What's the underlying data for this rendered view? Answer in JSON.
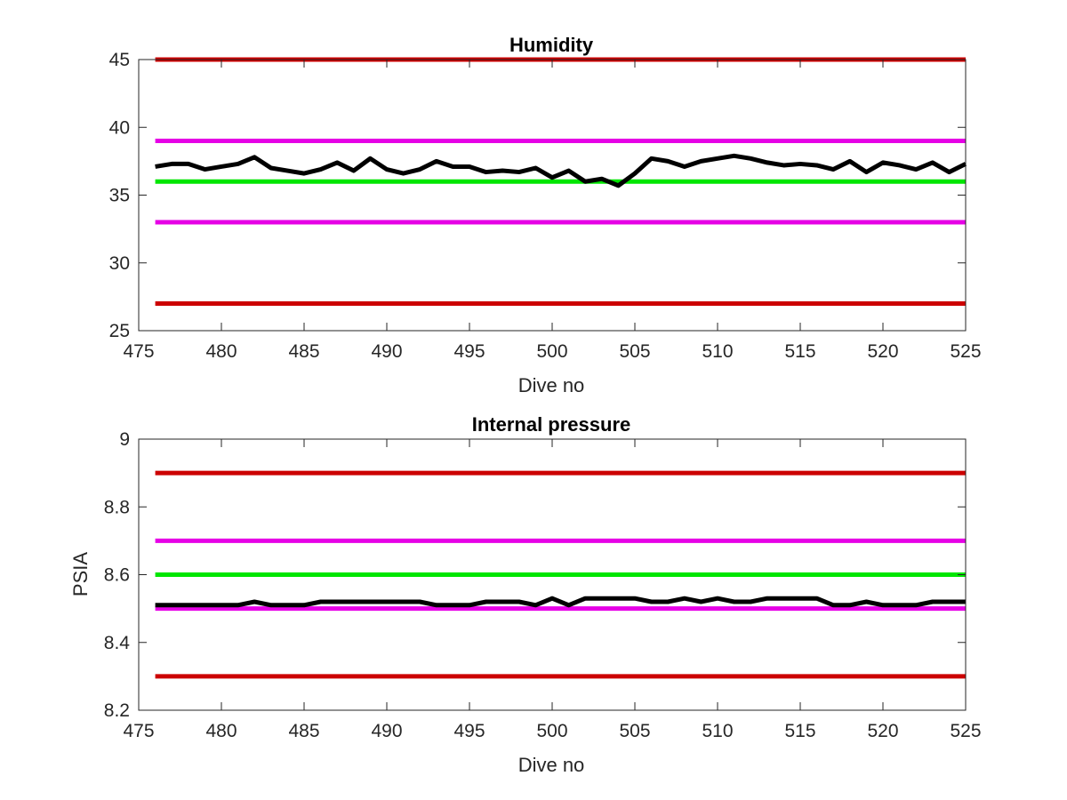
{
  "chart_data": [
    {
      "type": "line",
      "title": "Humidity",
      "xlabel": "Dive no",
      "ylabel": "",
      "xlim": [
        475,
        525
      ],
      "ylim": [
        25,
        45
      ],
      "xticks": [
        475,
        480,
        485,
        490,
        495,
        500,
        505,
        510,
        515,
        520,
        525
      ],
      "yticks": [
        25,
        30,
        35,
        40,
        45
      ],
      "grid": false,
      "reference_lines": [
        {
          "y": 45,
          "color": "#cc0000"
        },
        {
          "y": 39,
          "color": "#e600e6"
        },
        {
          "y": 36,
          "color": "#00e600"
        },
        {
          "y": 33,
          "color": "#e600e6"
        },
        {
          "y": 27,
          "color": "#cc0000"
        }
      ],
      "series": [
        {
          "color": "#000000",
          "x": [
            476,
            477,
            478,
            479,
            480,
            481,
            482,
            483,
            484,
            485,
            486,
            487,
            488,
            489,
            490,
            491,
            492,
            493,
            494,
            495,
            496,
            497,
            498,
            499,
            500,
            501,
            502,
            503,
            504,
            505,
            506,
            507,
            508,
            509,
            510,
            511,
            512,
            513,
            514,
            515,
            516,
            517,
            518,
            519,
            520,
            521,
            522,
            523,
            524,
            525
          ],
          "y": [
            37.1,
            37.3,
            37.3,
            36.9,
            37.1,
            37.3,
            37.8,
            37.0,
            36.8,
            36.6,
            36.9,
            37.4,
            36.8,
            37.7,
            36.9,
            36.6,
            36.9,
            37.5,
            37.1,
            37.1,
            36.7,
            36.8,
            36.7,
            37.0,
            36.3,
            36.8,
            36.0,
            36.2,
            35.7,
            36.6,
            37.7,
            37.5,
            37.1,
            37.5,
            37.7,
            37.9,
            37.7,
            37.4,
            37.2,
            37.3,
            37.2,
            36.9,
            37.5,
            36.7,
            37.4,
            37.2,
            36.9,
            37.4,
            36.7,
            37.3
          ]
        }
      ]
    },
    {
      "type": "line",
      "title": "Internal pressure",
      "xlabel": "Dive no",
      "ylabel": "PSIA",
      "xlim": [
        475,
        525
      ],
      "ylim": [
        8.2,
        9
      ],
      "xticks": [
        475,
        480,
        485,
        490,
        495,
        500,
        505,
        510,
        515,
        520,
        525
      ],
      "yticks": [
        8.2,
        8.4,
        8.6,
        8.8,
        9
      ],
      "ytick_labels": [
        "8.2",
        "8.4",
        "8.6",
        "8.8",
        "9"
      ],
      "grid": false,
      "reference_lines": [
        {
          "y": 8.9,
          "color": "#cc0000"
        },
        {
          "y": 8.7,
          "color": "#e600e6"
        },
        {
          "y": 8.6,
          "color": "#00e600"
        },
        {
          "y": 8.5,
          "color": "#e600e6"
        },
        {
          "y": 8.3,
          "color": "#cc0000"
        }
      ],
      "series": [
        {
          "color": "#000000",
          "x": [
            476,
            477,
            478,
            479,
            480,
            481,
            482,
            483,
            484,
            485,
            486,
            487,
            488,
            489,
            490,
            491,
            492,
            493,
            494,
            495,
            496,
            497,
            498,
            499,
            500,
            501,
            502,
            503,
            504,
            505,
            506,
            507,
            508,
            509,
            510,
            511,
            512,
            513,
            514,
            515,
            516,
            517,
            518,
            519,
            520,
            521,
            522,
            523,
            524,
            525
          ],
          "y": [
            8.51,
            8.51,
            8.51,
            8.51,
            8.51,
            8.51,
            8.52,
            8.51,
            8.51,
            8.51,
            8.52,
            8.52,
            8.52,
            8.52,
            8.52,
            8.52,
            8.52,
            8.51,
            8.51,
            8.51,
            8.52,
            8.52,
            8.52,
            8.51,
            8.53,
            8.51,
            8.53,
            8.53,
            8.53,
            8.53,
            8.52,
            8.52,
            8.53,
            8.52,
            8.53,
            8.52,
            8.52,
            8.53,
            8.53,
            8.53,
            8.53,
            8.51,
            8.51,
            8.52,
            8.51,
            8.51,
            8.51,
            8.52,
            8.52,
            8.52
          ]
        }
      ]
    }
  ]
}
